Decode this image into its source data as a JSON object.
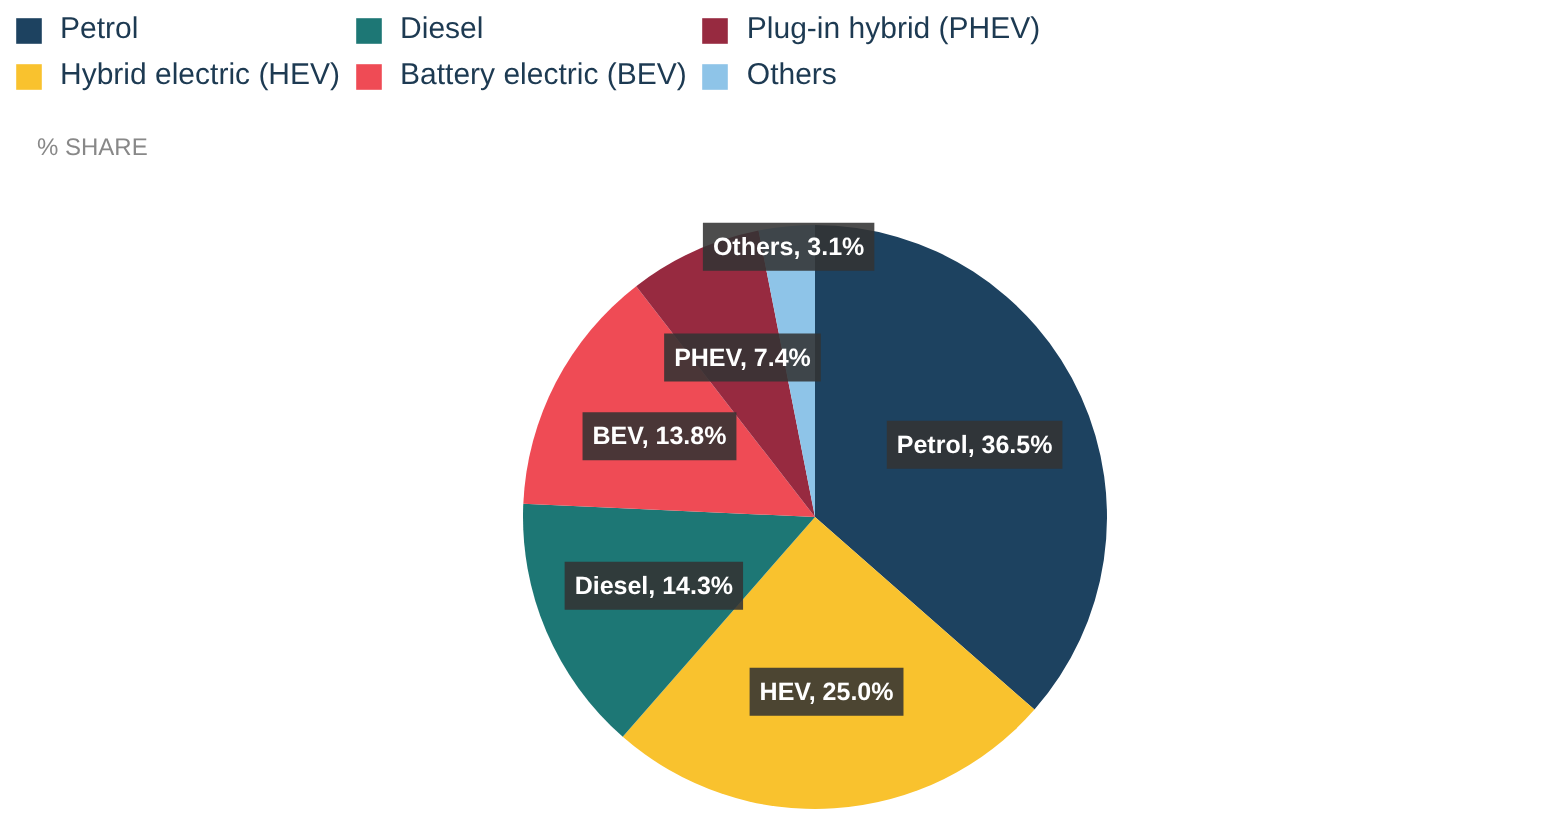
{
  "chart_data": {
    "type": "pie",
    "subtitle": "% SHARE",
    "categories": [
      "Petrol",
      "Hybrid electric (HEV)",
      "Diesel",
      "Battery electric (BEV)",
      "Plug-in hybrid (PHEV)",
      "Others"
    ],
    "values": [
      36.5,
      25.0,
      14.3,
      13.8,
      7.4,
      3.1
    ],
    "colors": [
      "#1d4260",
      "#f9c22e",
      "#1d7775",
      "#ef4b55",
      "#972a40",
      "#8ec4e8"
    ],
    "value_labels": [
      "Petrol, 36.5%",
      "HEV, 25.0%",
      "Diesel, 14.3%",
      "BEV, 13.8%",
      "PHEV, 7.4%",
      "Others, 3.1%"
    ],
    "legend": "top left"
  }
}
